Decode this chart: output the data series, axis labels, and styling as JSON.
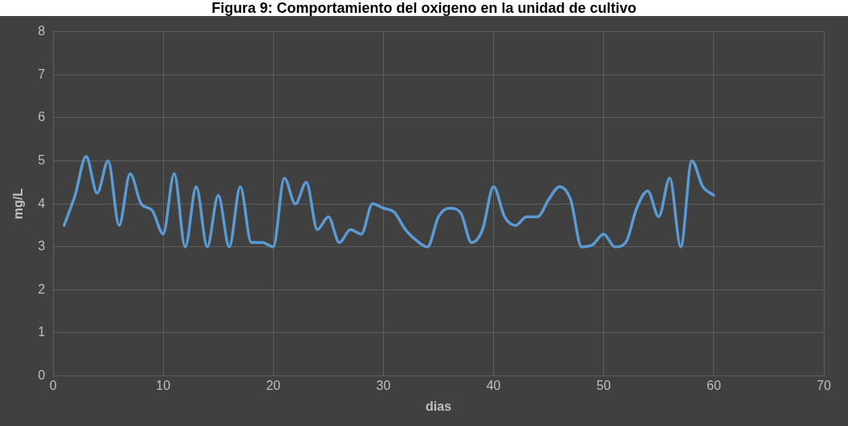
{
  "chart_data": {
    "type": "line",
    "title": "Figura 9: Comportamiento del oxigeno en la unidad de cultivo",
    "xlabel": "dias",
    "ylabel": "mg/L",
    "x": [
      1,
      2,
      3,
      4,
      5,
      6,
      7,
      8,
      9,
      10,
      11,
      12,
      13,
      14,
      15,
      16,
      17,
      18,
      19,
      20,
      21,
      22,
      23,
      24,
      25,
      26,
      27,
      28,
      29,
      30,
      31,
      32,
      33,
      34,
      35,
      36,
      37,
      38,
      39,
      40,
      41,
      42,
      43,
      44,
      45,
      46,
      47,
      48,
      49,
      50,
      51,
      52,
      53,
      54,
      55,
      56,
      57,
      58,
      59,
      60
    ],
    "series": [
      {
        "color": "#5b9bd5",
        "values": [
          3.5,
          4.2,
          5.1,
          4.25,
          5.0,
          3.5,
          4.7,
          4.0,
          3.85,
          3.3,
          4.7,
          3.0,
          4.4,
          3.0,
          4.2,
          3.0,
          4.4,
          3.1,
          3.1,
          3.0,
          4.6,
          4.0,
          4.5,
          3.4,
          3.7,
          3.1,
          3.4,
          3.3,
          4.0,
          3.9,
          3.8,
          3.4,
          3.15,
          3.0,
          3.7,
          3.9,
          3.8,
          3.1,
          3.4,
          4.4,
          3.7,
          3.5,
          3.7,
          3.7,
          4.1,
          4.4,
          4.1,
          3.0,
          3.05,
          3.3,
          3.0,
          3.1,
          3.9,
          4.3,
          3.7,
          4.6,
          3.0,
          5.0,
          4.4,
          4.2
        ]
      }
    ],
    "xlim": [
      0,
      70
    ],
    "xticks": [
      0,
      10,
      20,
      30,
      40,
      50,
      60,
      70
    ],
    "ylim": [
      0,
      8
    ],
    "yticks": [
      0,
      1,
      2,
      3,
      4,
      5,
      6,
      7,
      8
    ],
    "grid": true,
    "legend": false,
    "marker": "none",
    "line_style": "solid"
  }
}
